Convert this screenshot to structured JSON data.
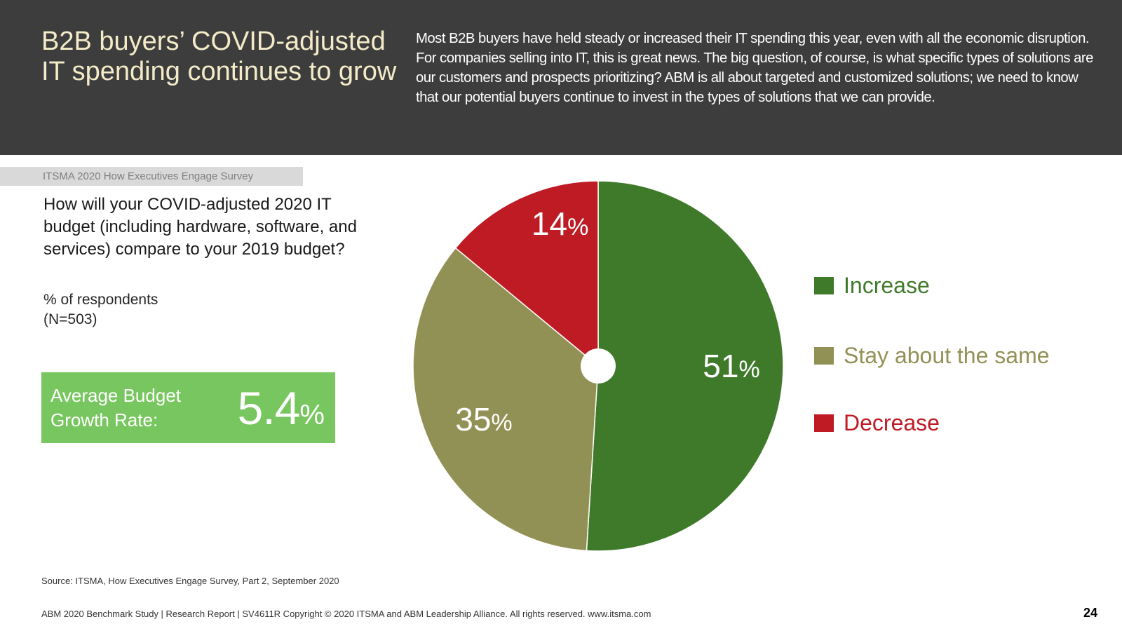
{
  "header": {
    "title": "B2B buyers’ COVID-adjusted IT spending continues to grow",
    "body": "Most B2B buyers have held steady or increased their IT spending this year, even with all the economic disruption. For companies selling into IT, this is great news. The big question, of course, is what specific types of solutions are our customers and prospects prioritizing? ABM is all about targeted and customized solutions; we need to know that our potential buyers continue to invest in the types of solutions that we can provide."
  },
  "survey_tag": "ITSMA 2020 How Executives Engage Survey",
  "question": "How will your COVID-adjusted 2020 IT budget (including hardware, software, and services) compare to your 2019 budget?",
  "respondents": {
    "line1": "% of respondents",
    "line2": "(N=503)"
  },
  "average_budget": {
    "label": "Average Budget Growth Rate:",
    "value": "5.4",
    "unit": "%"
  },
  "chart_data": {
    "type": "pie",
    "title": "",
    "unit": "%",
    "categories": [
      "Increase",
      "Stay about the same",
      "Decrease"
    ],
    "values": [
      51,
      35,
      14
    ],
    "colors": [
      "#3f7a2b",
      "#929155",
      "#be1b24"
    ],
    "legend_position": "right"
  },
  "source": "Source: ITSMA, How Executives Engage Survey, Part 2, September 2020",
  "footer": "ABM 2020 Benchmark Study | Research Report | SV4611R Copyright © 2020 ITSMA and ABM Leadership Alliance. All rights reserved. www.itsma.com",
  "page_number": "24"
}
